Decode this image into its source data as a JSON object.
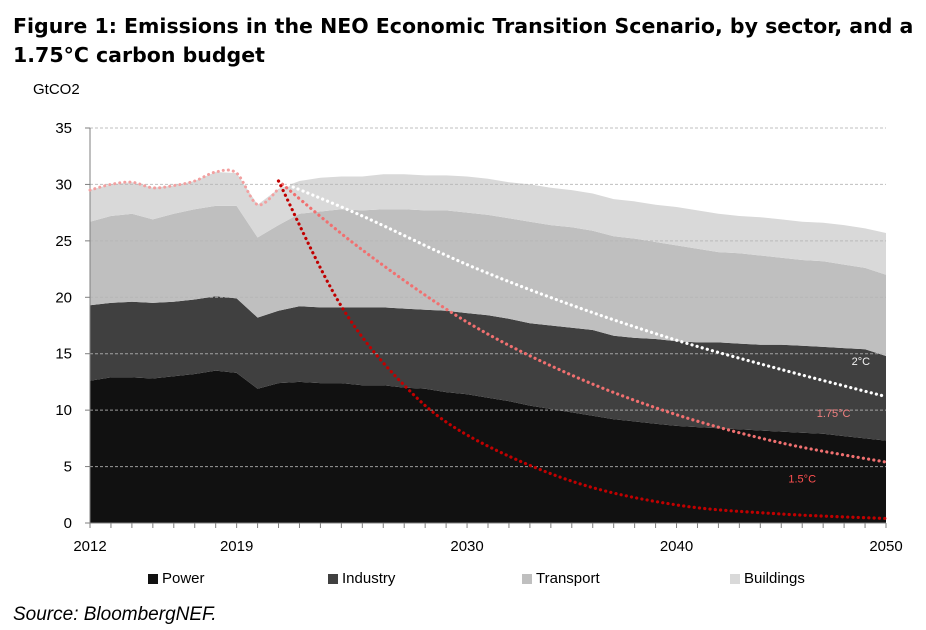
{
  "title": "Figure 1: Emissions in the NEO Economic Transition Scenario, by sector, and a 1.75°C carbon budget",
  "source": "Source: BloombergNEF.",
  "chart_data": {
    "type": "area",
    "title": "Emissions in the NEO Economic Transition Scenario, by sector, and a 1.75°C carbon budget",
    "ylabel": "GtCO2",
    "xlabel": "",
    "ylim": [
      0,
      35
    ],
    "xlim": [
      2012,
      2050
    ],
    "yticks": [
      0,
      5,
      10,
      15,
      20,
      25,
      30,
      35
    ],
    "xticks": [
      2012,
      2019,
      2030,
      2040,
      2050
    ],
    "grid": true,
    "stacked": true,
    "x": [
      2012,
      2013,
      2014,
      2015,
      2016,
      2017,
      2018,
      2019,
      2020,
      2021,
      2022,
      2023,
      2024,
      2025,
      2026,
      2027,
      2028,
      2029,
      2030,
      2031,
      2032,
      2033,
      2034,
      2035,
      2036,
      2037,
      2038,
      2039,
      2040,
      2041,
      2042,
      2043,
      2044,
      2045,
      2046,
      2047,
      2048,
      2049,
      2050
    ],
    "series": [
      {
        "name": "Power",
        "color": "#111111",
        "values": [
          12.6,
          12.9,
          12.9,
          12.8,
          13.0,
          13.2,
          13.5,
          13.3,
          11.9,
          12.4,
          12.5,
          12.4,
          12.4,
          12.2,
          12.2,
          12.0,
          11.9,
          11.6,
          11.4,
          11.1,
          10.8,
          10.4,
          10.1,
          9.8,
          9.5,
          9.2,
          9.0,
          8.8,
          8.6,
          8.5,
          8.4,
          8.3,
          8.2,
          8.1,
          8.0,
          7.9,
          7.7,
          7.5,
          7.3
        ]
      },
      {
        "name": "Industry",
        "color": "#404040",
        "values": [
          6.7,
          6.6,
          6.7,
          6.7,
          6.6,
          6.6,
          6.6,
          6.6,
          6.3,
          6.4,
          6.7,
          6.7,
          6.7,
          6.9,
          6.9,
          7.0,
          7.0,
          7.2,
          7.2,
          7.3,
          7.3,
          7.3,
          7.4,
          7.5,
          7.6,
          7.4,
          7.4,
          7.5,
          7.5,
          7.5,
          7.6,
          7.6,
          7.6,
          7.7,
          7.7,
          7.7,
          7.8,
          7.9,
          7.5
        ]
      },
      {
        "name": "Transport",
        "color": "#bfbfbf",
        "values": [
          7.4,
          7.7,
          7.8,
          7.4,
          7.8,
          8.0,
          8.0,
          8.2,
          7.1,
          7.6,
          8.2,
          8.5,
          8.7,
          8.6,
          8.7,
          8.8,
          8.8,
          8.9,
          8.9,
          8.9,
          8.9,
          9.0,
          8.9,
          8.9,
          8.8,
          8.8,
          8.8,
          8.6,
          8.5,
          8.3,
          8.0,
          8.0,
          7.9,
          7.7,
          7.6,
          7.6,
          7.4,
          7.2,
          7.2
        ]
      },
      {
        "name": "Buildings",
        "color": "#d9d9d9",
        "values": [
          2.8,
          2.8,
          2.8,
          2.8,
          2.5,
          2.5,
          3.0,
          2.9,
          2.9,
          3.2,
          2.9,
          3.0,
          2.9,
          3.0,
          3.1,
          3.1,
          3.1,
          3.1,
          3.2,
          3.2,
          3.2,
          3.3,
          3.3,
          3.3,
          3.3,
          3.3,
          3.3,
          3.3,
          3.4,
          3.4,
          3.4,
          3.3,
          3.4,
          3.4,
          3.4,
          3.4,
          3.5,
          3.5,
          3.7
        ]
      }
    ],
    "budget_paths": [
      {
        "name": "2°C",
        "label": "2°C",
        "color": "#ffffff",
        "label_color": "#f2f2f2",
        "label_at": [
          2048.8,
          14.0
        ],
        "x": [
          2021,
          2025,
          2030,
          2035,
          2040,
          2045,
          2050
        ],
        "values": [
          30.3,
          27.2,
          22.9,
          19.3,
          16.2,
          13.6,
          11.2
        ]
      },
      {
        "name": "1.75°C",
        "label": "1.75°C",
        "color": "#f07070",
        "label_color": "#f08080",
        "label_at": [
          2047.5,
          9.4
        ],
        "x": [
          2021,
          2025,
          2030,
          2035,
          2040,
          2045,
          2050
        ],
        "values": [
          30.3,
          24.2,
          17.8,
          13.1,
          9.6,
          7.1,
          5.4
        ]
      },
      {
        "name": "1.5°C",
        "label": "1.5°C",
        "color": "#c00000",
        "label_color": "#ff5050",
        "label_at": [
          2046.0,
          3.6
        ],
        "x": [
          2021,
          2024,
          2027,
          2030,
          2035,
          2040,
          2045,
          2050
        ],
        "values": [
          30.3,
          19.2,
          12.2,
          7.8,
          3.7,
          1.6,
          0.8,
          0.4
        ]
      }
    ],
    "legend": [
      "Power",
      "Industry",
      "Transport",
      "Buildings"
    ],
    "legend_position": "bottom"
  }
}
